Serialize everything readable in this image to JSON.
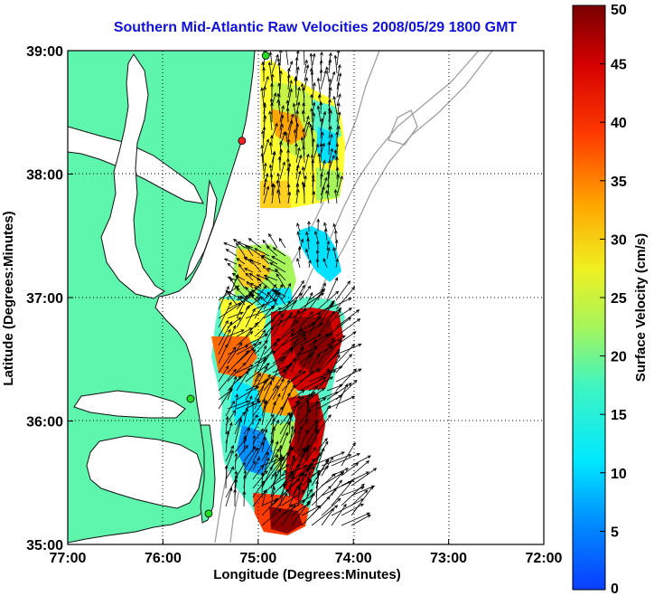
{
  "chart_data": {
    "type": "heatmap",
    "title": "Southern Mid-Atlantic Raw Velocities 2008/05/29 1800 GMT",
    "xlabel": "Longitude (Degrees:Minutes)",
    "ylabel": "Latitude (Degrees:Minutes)",
    "x_ticks": [
      "77:00",
      "76:00",
      "75:00",
      "74:00",
      "73:00",
      "72:00"
    ],
    "y_ticks": [
      "35:00",
      "36:00",
      "37:00",
      "38:00",
      "39:00"
    ],
    "xlim": [
      -77,
      -72
    ],
    "ylim": [
      35,
      39
    ],
    "grid": true,
    "colorbar": {
      "label": "Surface Velocity (cm/s)",
      "range": [
        0,
        50
      ],
      "ticks": [
        "0",
        "5",
        "10",
        "15",
        "20",
        "25",
        "30",
        "35",
        "40",
        "45",
        "50"
      ]
    },
    "colors": {
      "land": "#5ef5ad",
      "title": "#1010dd",
      "station_green": "#22dd22",
      "station_red": "#ee2222",
      "bathymetry": "#a0a0a0"
    },
    "stations": [
      {
        "lon": -74.92,
        "lat": 38.96,
        "color": "green"
      },
      {
        "lon": -75.17,
        "lat": 38.27,
        "color": "red"
      },
      {
        "lon": -75.71,
        "lat": 36.18,
        "color": "green"
      },
      {
        "lon": -75.52,
        "lat": 35.25,
        "color": "green"
      }
    ]
  }
}
